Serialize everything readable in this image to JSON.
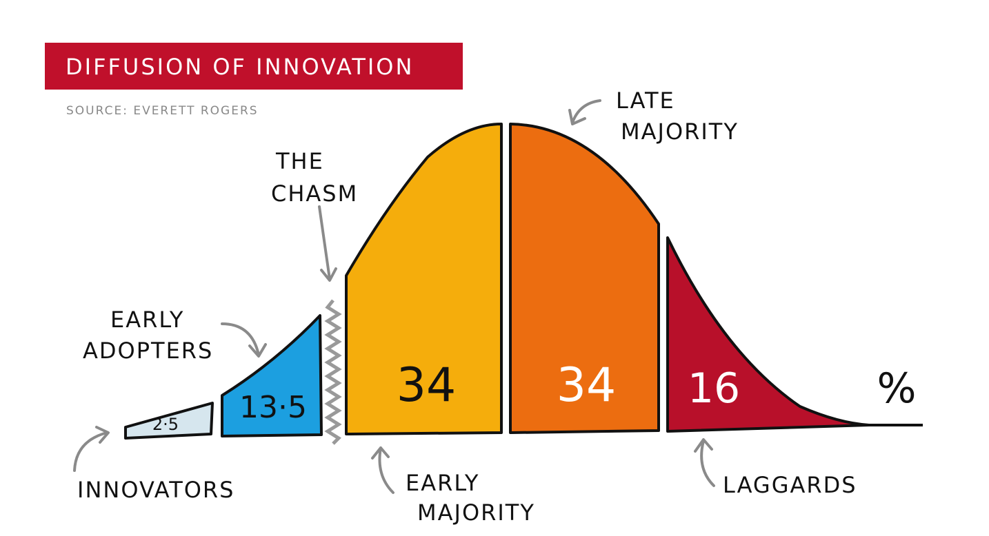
{
  "header": {
    "title": "DIFFUSION OF INNOVATION",
    "source": "SOURCE: EVERETT ROGERS"
  },
  "segments": [
    {
      "name": "INNOVATORS",
      "value": 2.5,
      "value_label": "2·5",
      "color": "#d6e6ee"
    },
    {
      "name": "EARLY ADOPTERS",
      "value": 13.5,
      "value_label": "13·5",
      "color": "#1c9fe0"
    },
    {
      "name": "EARLY MAJORITY",
      "value": 34,
      "color": "#f5ad0c"
    },
    {
      "name": "LATE MAJORITY",
      "value": 34,
      "color": "#ec6d10"
    },
    {
      "name": "LAGGARDS",
      "value": 16,
      "color": "#b8102a"
    }
  ],
  "chasm": "THE CHASM",
  "unit": "%"
}
